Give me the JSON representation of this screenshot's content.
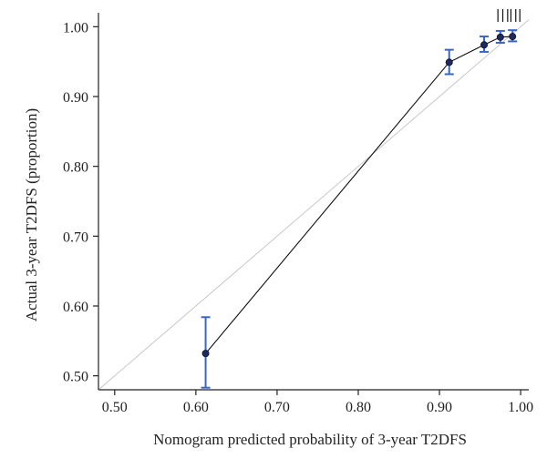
{
  "chart_data": {
    "type": "scatter",
    "xlabel": "Nomogram predicted probability of 3-year T2DFS",
    "ylabel": "Actual 3-year T2DFS (proportion)",
    "xlim": [
      0.48,
      1.01
    ],
    "ylim": [
      0.48,
      1.02
    ],
    "x_ticks": [
      "0.50",
      "0.60",
      "0.70",
      "0.80",
      "0.90",
      "1.00"
    ],
    "y_ticks": [
      "0.50",
      "0.60",
      "0.70",
      "0.80",
      "0.90",
      "1.00"
    ],
    "grid": false,
    "reference_line": {
      "from": [
        0.48,
        0.48
      ],
      "to": [
        1.01,
        1.01
      ],
      "style": "light gray diagonal"
    },
    "series": [
      {
        "points": [
          {
            "x": 0.612,
            "y": 0.532,
            "lower": 0.483,
            "upper": 0.584
          },
          {
            "x": 0.912,
            "y": 0.949,
            "lower": 0.932,
            "upper": 0.967
          },
          {
            "x": 0.955,
            "y": 0.974,
            "lower": 0.964,
            "upper": 0.986
          },
          {
            "x": 0.975,
            "y": 0.985,
            "lower": 0.977,
            "upper": 0.994
          },
          {
            "x": 0.99,
            "y": 0.986,
            "lower": 0.979,
            "upper": 0.995
          }
        ]
      }
    ],
    "rug_x": [
      0.972,
      0.978,
      0.984,
      0.988,
      0.994,
      0.999
    ],
    "colors": {
      "points": "#1e2a5e",
      "error_bars": "#3a67c4",
      "line": "#111111",
      "reference": "#c8c8c8",
      "axes": "#222222"
    }
  }
}
